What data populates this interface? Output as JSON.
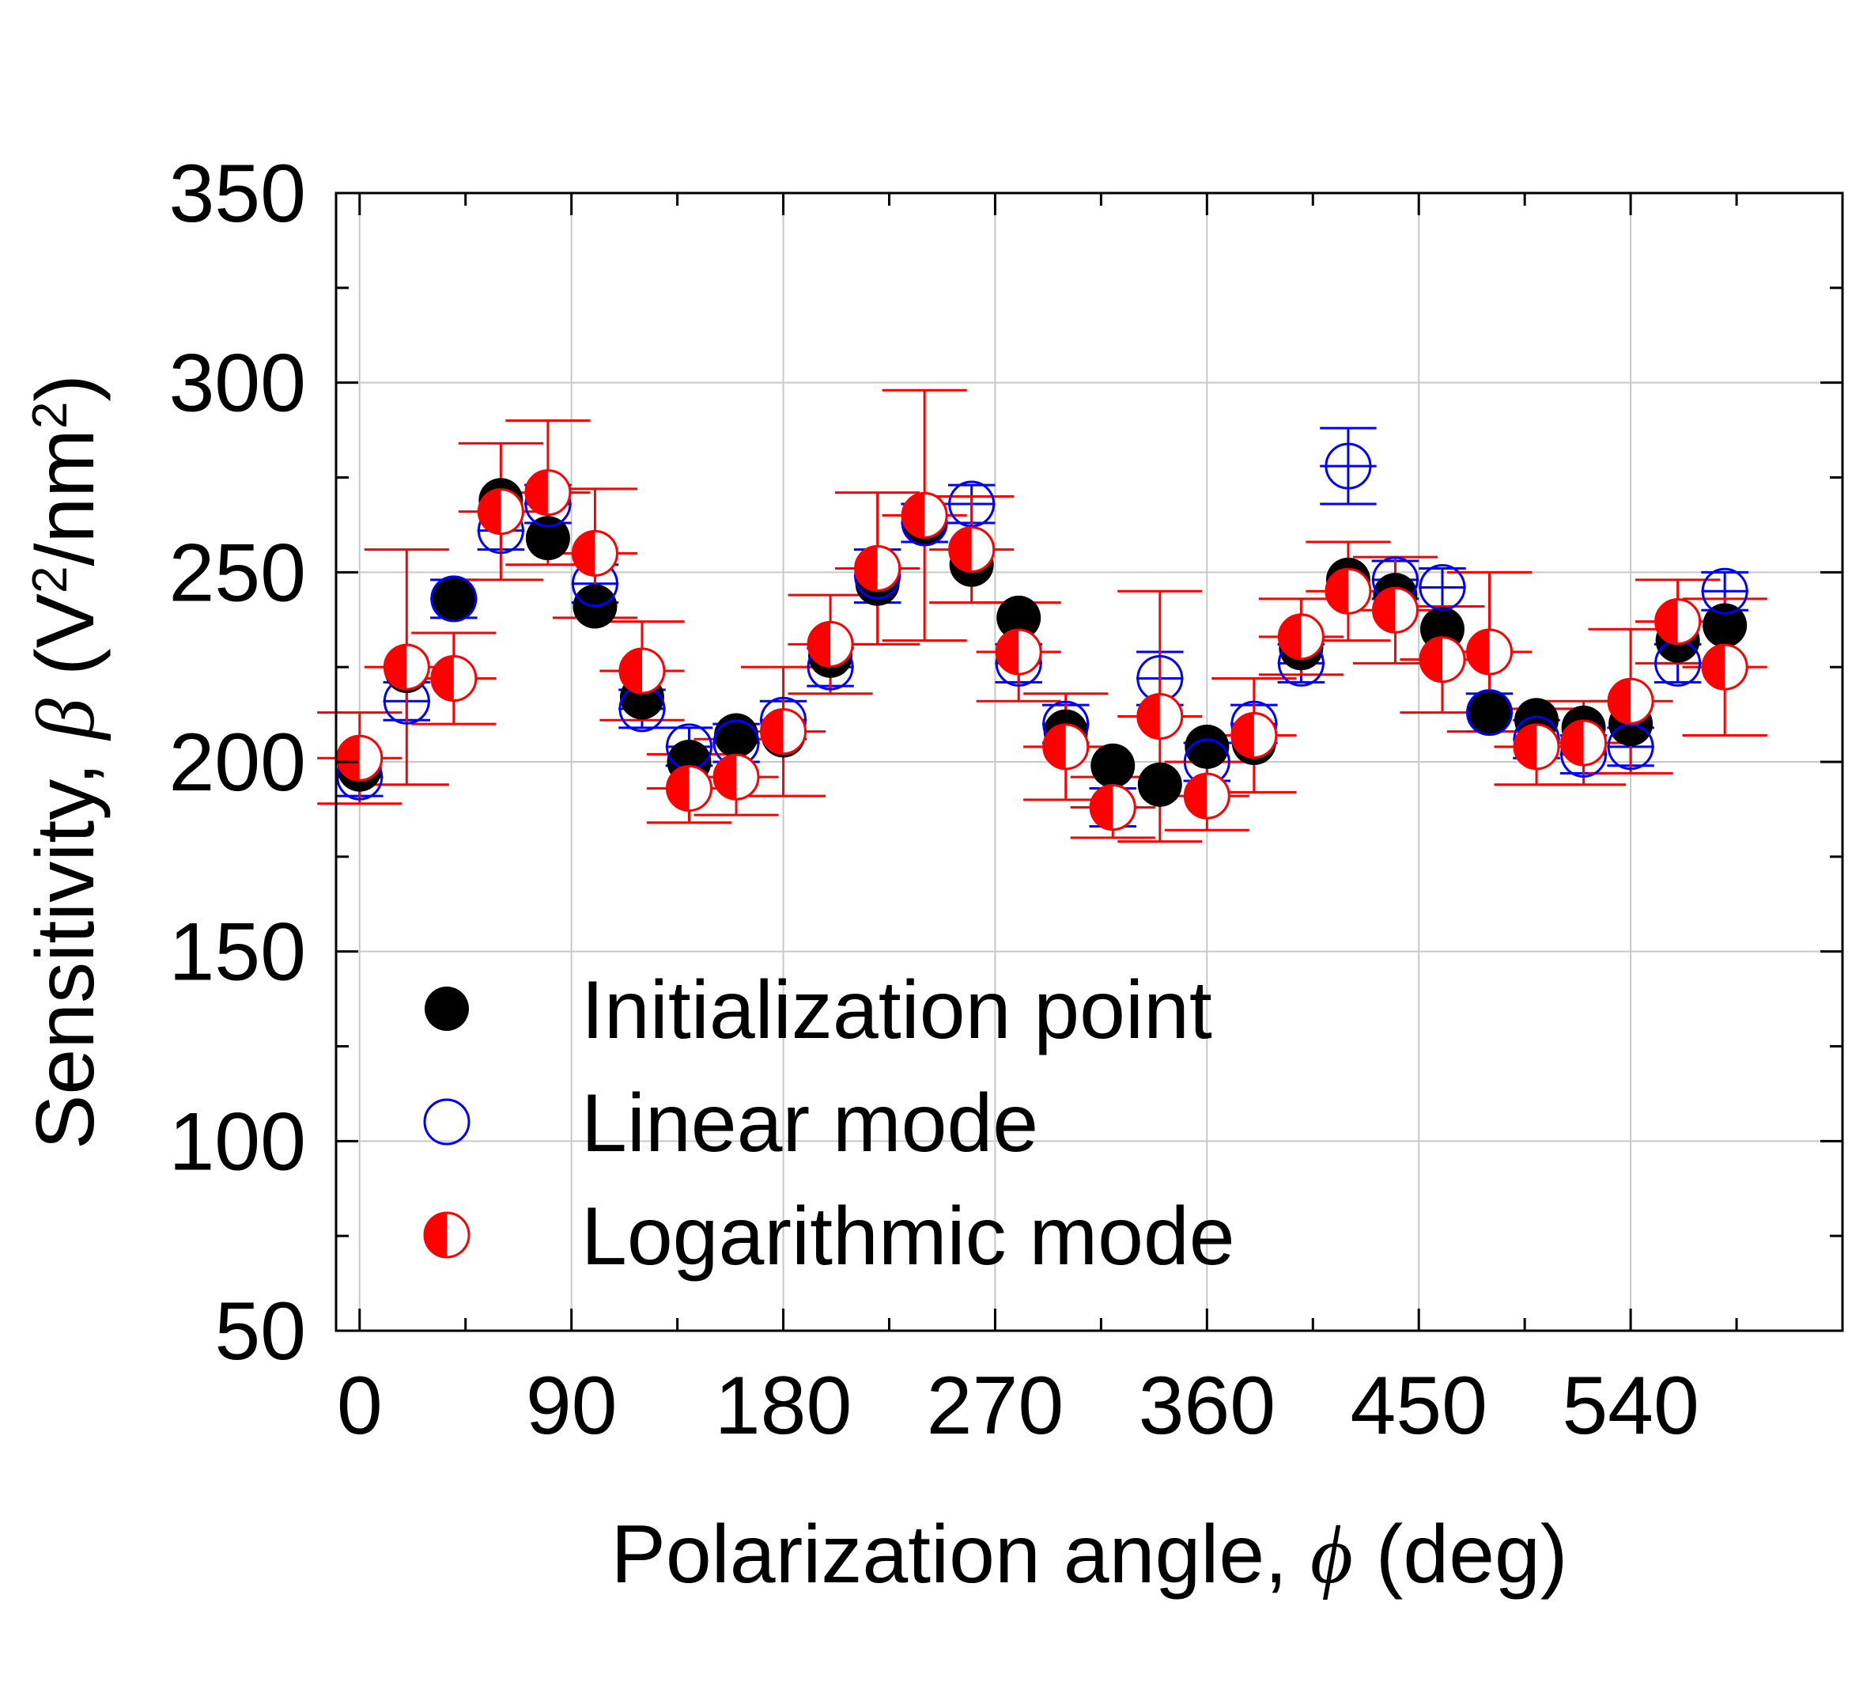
{
  "chart_data": {
    "type": "scatter",
    "xlabel_text": "Polarization angle, ",
    "xlabel_symbol": "ϕ",
    "xlabel_unit": " (deg)",
    "ylabel_text": "Sensitivity, ",
    "ylabel_symbol": "β",
    "ylabel_unit_a": " (V",
    "ylabel_unit_sup1": "2",
    "ylabel_unit_b": "/nm",
    "ylabel_unit_sup2": "2",
    "ylabel_unit_c": ")",
    "xlim": [
      -10,
      630
    ],
    "ylim": [
      50,
      350
    ],
    "xticks": [
      0,
      90,
      180,
      270,
      360,
      450,
      540
    ],
    "xtick_labels": [
      "0",
      "90",
      "180",
      "270",
      "360",
      "450",
      "540"
    ],
    "yticks": [
      50,
      100,
      150,
      200,
      250,
      300,
      350
    ],
    "ytick_labels": [
      "50",
      "100",
      "150",
      "200",
      "250",
      "300",
      "350"
    ],
    "grid": true,
    "legend_position": "bottom-left",
    "colors": {
      "initialization": "#000000",
      "linear": "#0000ff",
      "logarithmic": "#ff0000"
    },
    "series": [
      {
        "name": "Initialization point",
        "marker": "filled-circle",
        "points": [
          [
            0,
            198
          ],
          [
            20,
            224
          ],
          [
            40,
            243
          ],
          [
            60,
            269
          ],
          [
            80,
            259
          ],
          [
            100,
            241
          ],
          [
            120,
            217
          ],
          [
            140,
            200
          ],
          [
            160,
            207
          ],
          [
            180,
            207
          ],
          [
            200,
            228
          ],
          [
            220,
            247
          ],
          [
            240,
            263
          ],
          [
            260,
            252
          ],
          [
            280,
            238
          ],
          [
            300,
            208
          ],
          [
            320,
            199
          ],
          [
            340,
            194
          ],
          [
            360,
            204
          ],
          [
            380,
            205
          ],
          [
            400,
            230
          ],
          [
            420,
            248
          ],
          [
            440,
            244
          ],
          [
            460,
            235
          ],
          [
            480,
            213
          ],
          [
            500,
            211
          ],
          [
            520,
            209
          ],
          [
            540,
            210
          ],
          [
            560,
            232
          ],
          [
            580,
            236
          ]
        ]
      },
      {
        "name": "Linear mode",
        "marker": "open-circle",
        "points": [
          [
            0,
            196,
            5,
            10
          ],
          [
            20,
            216,
            5,
            10
          ],
          [
            40,
            243,
            5,
            10
          ],
          [
            60,
            261,
            5,
            10
          ],
          [
            80,
            268,
            5,
            10
          ],
          [
            100,
            247,
            5,
            10
          ],
          [
            120,
            214,
            5,
            10
          ],
          [
            140,
            204,
            5,
            10
          ],
          [
            160,
            205,
            5,
            10
          ],
          [
            180,
            211,
            5,
            10
          ],
          [
            200,
            225,
            5,
            10
          ],
          [
            220,
            249,
            7,
            10
          ],
          [
            240,
            263,
            5,
            10
          ],
          [
            260,
            268,
            5,
            10
          ],
          [
            280,
            226,
            5,
            10
          ],
          [
            300,
            210,
            5,
            10
          ],
          [
            320,
            188,
            5,
            10
          ],
          [
            340,
            222,
            7,
            10
          ],
          [
            360,
            200,
            5,
            10
          ],
          [
            380,
            210,
            5,
            10
          ],
          [
            400,
            226,
            5,
            10
          ],
          [
            420,
            278,
            10,
            12
          ],
          [
            440,
            248,
            5,
            10
          ],
          [
            460,
            246,
            5,
            10
          ],
          [
            480,
            213,
            5,
            10
          ],
          [
            500,
            206,
            5,
            10
          ],
          [
            520,
            202,
            5,
            10
          ],
          [
            540,
            204,
            5,
            10
          ],
          [
            560,
            226,
            5,
            10
          ],
          [
            580,
            245,
            5,
            10
          ]
        ]
      },
      {
        "name": "Logarithmic mode",
        "marker": "half-filled-circle",
        "points": [
          [
            0,
            201,
            12,
            18
          ],
          [
            20,
            225,
            31,
            18
          ],
          [
            40,
            222,
            12,
            18
          ],
          [
            60,
            266,
            18,
            18
          ],
          [
            80,
            271,
            19,
            18
          ],
          [
            100,
            255,
            17,
            18
          ],
          [
            120,
            224,
            13,
            18
          ],
          [
            140,
            193,
            9,
            18
          ],
          [
            160,
            196,
            10,
            18
          ],
          [
            180,
            208,
            17,
            18
          ],
          [
            200,
            231,
            13,
            18
          ],
          [
            220,
            251,
            20,
            18
          ],
          [
            240,
            265,
            33,
            18
          ],
          [
            260,
            256,
            14,
            18
          ],
          [
            280,
            229,
            13,
            18
          ],
          [
            300,
            204,
            14,
            18
          ],
          [
            320,
            188,
            8,
            18
          ],
          [
            340,
            212,
            33,
            18
          ],
          [
            360,
            191,
            9,
            18
          ],
          [
            380,
            207,
            15,
            18
          ],
          [
            400,
            233,
            10,
            18
          ],
          [
            420,
            245,
            13,
            18
          ],
          [
            440,
            240,
            14,
            18
          ],
          [
            460,
            227,
            14,
            18
          ],
          [
            480,
            229,
            21,
            18
          ],
          [
            500,
            204,
            10,
            18
          ],
          [
            520,
            205,
            11,
            18
          ],
          [
            540,
            216,
            19,
            18
          ],
          [
            560,
            237,
            11,
            18
          ],
          [
            580,
            225,
            18,
            18
          ]
        ]
      }
    ]
  }
}
